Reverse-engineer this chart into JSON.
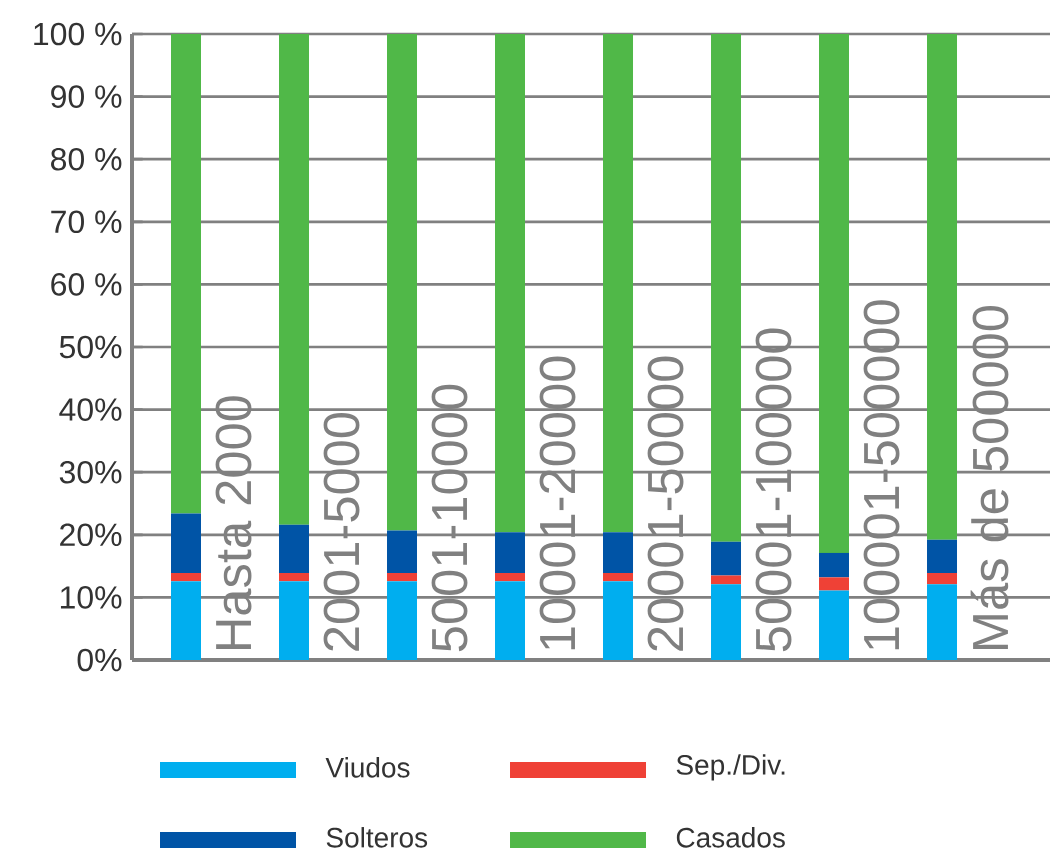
{
  "chart_data": {
    "type": "bar",
    "stacked": true,
    "categories": [
      "Hasta 2000",
      "2001-5000",
      "5001-10000",
      "10001-20000",
      "20001-50000",
      "50001-100000",
      "100001-500000",
      "Más de 500000"
    ],
    "series": [
      {
        "name": "Viudos",
        "color": "#00aeef",
        "values": [
          12.6,
          12.6,
          12.6,
          12.6,
          12.6,
          12.1,
          11.1,
          12.1
        ]
      },
      {
        "name": "Sep./Div.",
        "color": "#ef4136",
        "values": [
          1.3,
          1.3,
          1.3,
          1.3,
          1.3,
          1.4,
          2.1,
          1.8
        ]
      },
      {
        "name": "Solteros",
        "color": "#0054a6",
        "values": [
          9.5,
          7.7,
          6.8,
          6.5,
          6.5,
          5.4,
          3.9,
          5.3
        ]
      },
      {
        "name": "Casados",
        "color": "#50b848",
        "values": [
          76.6,
          78.4,
          79.3,
          79.6,
          79.6,
          81.1,
          82.9,
          80.8
        ]
      }
    ],
    "ylim": [
      0,
      100
    ],
    "yticks": [
      {
        "value": 0,
        "label": "0%"
      },
      {
        "value": 10,
        "label": "10%"
      },
      {
        "value": 20,
        "label": "20%"
      },
      {
        "value": 30,
        "label": "30%"
      },
      {
        "value": 40,
        "label": "40%"
      },
      {
        "value": 50,
        "label": "50%"
      },
      {
        "value": 60,
        "label": "60 %"
      },
      {
        "value": 70,
        "label": "70 %"
      },
      {
        "value": 80,
        "label": "80 %"
      },
      {
        "value": 90,
        "label": "90 %"
      },
      {
        "value": 100,
        "label": "100 %"
      }
    ],
    "grid": "y",
    "legend": "bottom"
  }
}
